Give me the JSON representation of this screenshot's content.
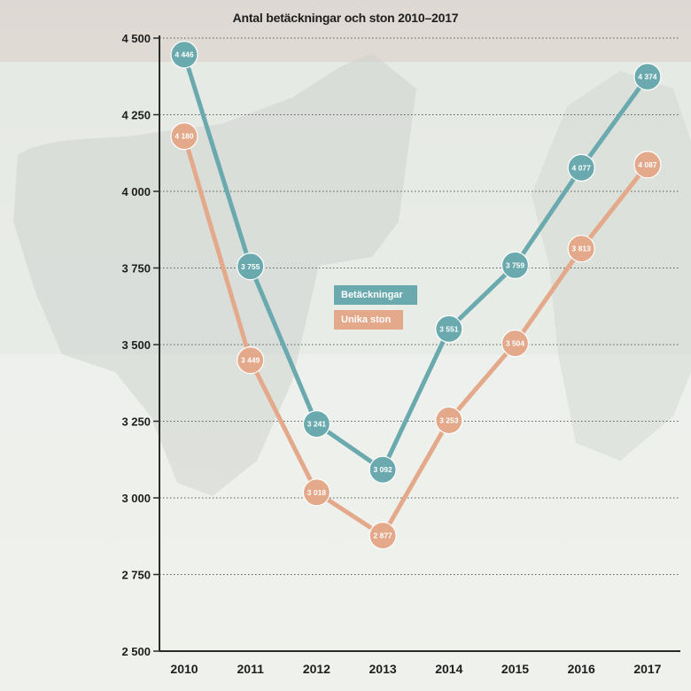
{
  "chart_data": {
    "type": "line",
    "title": "Antal betäckningar och ston 2010–2017",
    "xlabel": "",
    "ylabel": "",
    "categories": [
      "2010",
      "2011",
      "2012",
      "2013",
      "2014",
      "2015",
      "2016",
      "2017"
    ],
    "ylim": [
      2500,
      4500
    ],
    "yticks": [
      {
        "value": 4500,
        "label": "4 500"
      },
      {
        "value": 4250,
        "label": "4 250"
      },
      {
        "value": 4000,
        "label": "4 000"
      },
      {
        "value": 3750,
        "label": "3 750"
      },
      {
        "value": 3500,
        "label": "3 500"
      },
      {
        "value": 3250,
        "label": "3 250"
      },
      {
        "value": 3000,
        "label": "3 000"
      },
      {
        "value": 2750,
        "label": "2 750"
      },
      {
        "value": 2500,
        "label": "2 500"
      }
    ],
    "grid": "horizontal dotted",
    "legend_position": "center",
    "series": [
      {
        "name": "Betäckningar",
        "color": "#6aaaae",
        "values": [
          4446,
          3755,
          3241,
          3092,
          3551,
          3759,
          4077,
          4374
        ],
        "labels": [
          "4 446",
          "3 755",
          "3 241",
          "3 092",
          "3 551",
          "3 759",
          "4 077",
          "4 374"
        ]
      },
      {
        "name": "Unika ston",
        "color": "#e3a98a",
        "values": [
          4180,
          3449,
          3018,
          2877,
          3253,
          3504,
          3813,
          4087
        ],
        "labels": [
          "4 180",
          "3 449",
          "3 018",
          "2 877",
          "3 253",
          "3 504",
          "3 813",
          "4 087"
        ]
      }
    ]
  }
}
